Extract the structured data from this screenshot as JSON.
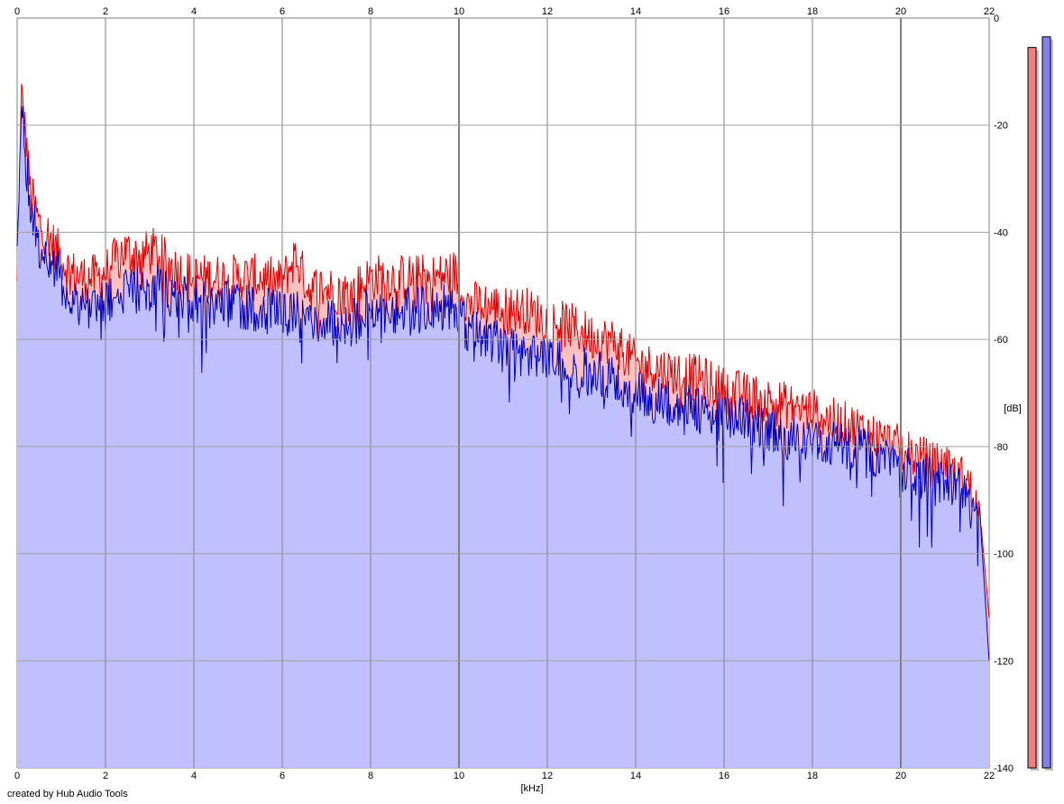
{
  "credit": "created by Hub Audio Tools",
  "chart_data": {
    "type": "area",
    "xlabel": "[kHz]",
    "ylabel": "[dB]",
    "xlim": [
      0,
      22
    ],
    "ylim": [
      -140,
      0
    ],
    "x_ticks": [
      0,
      2,
      4,
      6,
      8,
      10,
      12,
      14,
      16,
      18,
      20,
      22
    ],
    "x_tick_labels": [
      "0",
      "2",
      "4",
      "6",
      "8",
      "10",
      "12",
      "14",
      "16",
      "18",
      "20",
      "22"
    ],
    "y_ticks": [
      0,
      -20,
      -40,
      -60,
      -80,
      -100,
      -120,
      -140
    ],
    "y_tick_labels": [
      "0",
      "-20",
      "-40",
      "-60",
      "-80",
      "-100",
      "-120",
      "-140"
    ],
    "grid": true,
    "series": [
      {
        "color": "#e00000",
        "fill": "#ffc0c0",
        "x": [
          0,
          0.1,
          0.2,
          0.3,
          0.5,
          0.7,
          0.9,
          1.2,
          1.5,
          1.8,
          2.0,
          2.4,
          2.8,
          3.1,
          3.5,
          4.0,
          4.5,
          5.0,
          5.5,
          6.0,
          6.3,
          6.6,
          7.0,
          7.5,
          8.0,
          8.5,
          9.0,
          9.5,
          9.9,
          10.2,
          10.6,
          11.0,
          11.5,
          12.0,
          12.5,
          13.0,
          13.5,
          14.0,
          14.5,
          15.0,
          15.5,
          16.0,
          16.5,
          17.0,
          17.5,
          18.0,
          18.5,
          19.0,
          19.5,
          20.0,
          20.5,
          21.0,
          21.5,
          21.8,
          22.0
        ],
        "y": [
          -50,
          -14,
          -22,
          -32,
          -38,
          -40,
          -43,
          -47,
          -48,
          -48,
          -47,
          -43,
          -44,
          -43,
          -46,
          -48,
          -48,
          -48,
          -48,
          -49,
          -44,
          -50,
          -50,
          -51,
          -48,
          -48,
          -48,
          -48,
          -47,
          -53,
          -53,
          -54,
          -54,
          -56,
          -57,
          -59,
          -60,
          -64,
          -65,
          -66,
          -67,
          -69,
          -70,
          -71,
          -72,
          -73,
          -75,
          -76,
          -78,
          -80,
          -82,
          -84,
          -86,
          -93,
          -112
        ]
      },
      {
        "color": "#0000c0",
        "fill": "#c0c0ff",
        "x": [
          0,
          0.1,
          0.2,
          0.3,
          0.5,
          0.7,
          0.9,
          1.2,
          1.5,
          1.8,
          2.0,
          2.4,
          2.8,
          3.1,
          3.5,
          4.0,
          4.5,
          5.0,
          5.5,
          6.0,
          6.3,
          6.6,
          7.0,
          7.5,
          8.0,
          8.5,
          9.0,
          9.5,
          9.9,
          10.2,
          10.6,
          11.0,
          11.5,
          12.0,
          12.5,
          13.0,
          13.5,
          14.0,
          14.5,
          15.0,
          15.5,
          16.0,
          16.5,
          17.0,
          17.5,
          18.0,
          18.5,
          19.0,
          19.5,
          20.0,
          20.5,
          21.0,
          21.5,
          21.8,
          22.0
        ],
        "y": [
          -46,
          -12,
          -26,
          -35,
          -42,
          -44,
          -47,
          -52,
          -53,
          -53,
          -53,
          -51,
          -50,
          -50,
          -51,
          -52,
          -53,
          -53,
          -54,
          -55,
          -54,
          -56,
          -56,
          -57,
          -54,
          -54,
          -54,
          -54,
          -53,
          -58,
          -59,
          -60,
          -61,
          -63,
          -64,
          -66,
          -67,
          -70,
          -71,
          -72,
          -73,
          -74,
          -75,
          -76,
          -77,
          -78,
          -79,
          -80,
          -82,
          -84,
          -85,
          -86,
          -87,
          -94,
          -120
        ]
      }
    ],
    "level_meters": [
      {
        "color": "#f08080",
        "top_db": -5.5
      },
      {
        "color": "#8080f0",
        "top_db": -3.5
      }
    ]
  }
}
